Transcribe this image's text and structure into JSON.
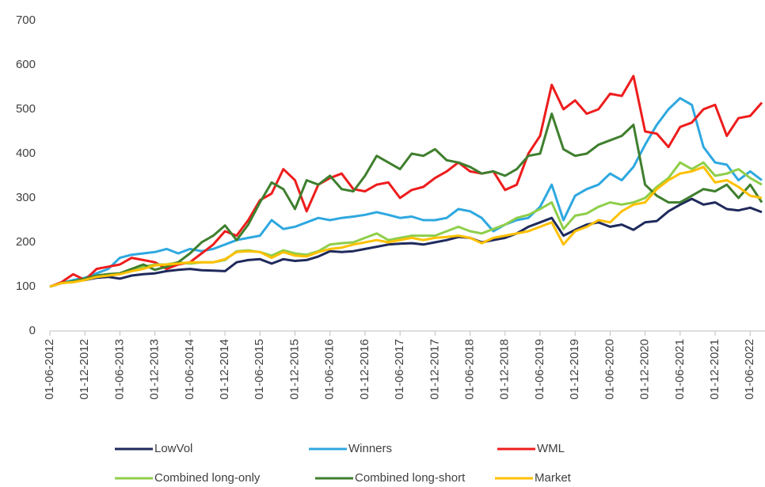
{
  "chart_data": {
    "type": "line",
    "categories": [
      "01-06-2012",
      null,
      null,
      "01-12-2012",
      null,
      null,
      "01-06-2013",
      null,
      null,
      "01-12-2013",
      null,
      null,
      "01-06-2014",
      null,
      null,
      "01-12-2014",
      null,
      null,
      "01-06-2015",
      null,
      null,
      "01-12-2015",
      null,
      null,
      "01-06-2016",
      null,
      null,
      "01-12-2016",
      null,
      null,
      "01-06-2017",
      null,
      null,
      "01-12-2017",
      null,
      null,
      "01-06-2018",
      null,
      null,
      "01-12-2018",
      null,
      null,
      "01-06-2019",
      null,
      null,
      "01-12-2019",
      null,
      null,
      "01-06-2020",
      null,
      null,
      "01-12-2020",
      null,
      null,
      "01-06-2021",
      null,
      null,
      "01-12-2021",
      null,
      null,
      "01-06-2022",
      null
    ],
    "series": [
      {
        "name": "LowVol",
        "color": "#1f2a5c",
        "values": [
          100,
          108,
          112,
          115,
          120,
          122,
          118,
          125,
          128,
          130,
          135,
          138,
          140,
          137,
          136,
          135,
          155,
          160,
          162,
          152,
          162,
          158,
          160,
          168,
          180,
          178,
          180,
          185,
          190,
          195,
          197,
          198,
          195,
          200,
          205,
          212,
          210,
          200,
          205,
          210,
          220,
          235,
          245,
          255,
          215,
          228,
          240,
          245,
          235,
          240,
          228,
          245,
          248,
          270,
          285,
          298,
          285,
          290,
          275,
          272,
          278,
          268
        ]
      },
      {
        "name": "Winners",
        "color": "#2ea8e0",
        "values": [
          100,
          108,
          115,
          120,
          130,
          140,
          165,
          172,
          175,
          178,
          185,
          175,
          185,
          180,
          185,
          195,
          205,
          210,
          215,
          250,
          230,
          235,
          245,
          255,
          250,
          255,
          258,
          262,
          268,
          262,
          255,
          258,
          250,
          250,
          255,
          275,
          270,
          255,
          225,
          240,
          250,
          255,
          280,
          330,
          250,
          305,
          320,
          330,
          355,
          340,
          370,
          420,
          465,
          500,
          525,
          510,
          415,
          380,
          375,
          340,
          360,
          340
        ]
      },
      {
        "name": "WML",
        "color": "#ee1c1c",
        "values": [
          100,
          110,
          128,
          115,
          140,
          145,
          150,
          165,
          160,
          155,
          140,
          150,
          155,
          175,
          195,
          225,
          215,
          250,
          295,
          310,
          365,
          340,
          270,
          330,
          345,
          355,
          320,
          315,
          330,
          335,
          300,
          318,
          325,
          345,
          360,
          380,
          360,
          355,
          360,
          318,
          330,
          400,
          440,
          555,
          500,
          520,
          490,
          500,
          535,
          530,
          575,
          450,
          445,
          415,
          460,
          470,
          500,
          510,
          440,
          480,
          485,
          515
        ]
      },
      {
        "name": "Combined long-only",
        "color": "#8fce4a",
        "values": [
          100,
          108,
          112,
          118,
          125,
          128,
          130,
          140,
          145,
          150,
          150,
          155,
          152,
          155,
          155,
          160,
          180,
          182,
          178,
          170,
          182,
          175,
          172,
          180,
          195,
          198,
          200,
          210,
          220,
          205,
          210,
          215,
          215,
          215,
          225,
          235,
          225,
          220,
          230,
          240,
          255,
          262,
          275,
          290,
          230,
          260,
          265,
          280,
          290,
          285,
          290,
          300,
          325,
          345,
          380,
          365,
          380,
          350,
          355,
          365,
          345,
          330
        ]
      },
      {
        "name": "Combined long-short",
        "color": "#3f7f2e",
        "values": [
          100,
          108,
          112,
          118,
          125,
          128,
          130,
          140,
          150,
          138,
          145,
          155,
          175,
          200,
          215,
          238,
          205,
          240,
          290,
          335,
          320,
          275,
          340,
          330,
          350,
          320,
          315,
          350,
          395,
          380,
          365,
          400,
          395,
          410,
          385,
          380,
          370,
          355,
          360,
          350,
          365,
          395,
          400,
          490,
          410,
          395,
          400,
          420,
          430,
          440,
          465,
          330,
          305,
          290,
          290,
          305,
          320,
          315,
          330,
          300,
          330,
          290
        ]
      },
      {
        "name": "Market",
        "color": "#ffc000",
        "values": [
          100,
          108,
          110,
          115,
          122,
          125,
          128,
          135,
          140,
          148,
          150,
          152,
          155,
          155,
          155,
          162,
          178,
          180,
          178,
          165,
          178,
          170,
          168,
          178,
          185,
          188,
          195,
          200,
          205,
          200,
          205,
          210,
          205,
          210,
          212,
          215,
          210,
          198,
          210,
          215,
          220,
          225,
          235,
          245,
          195,
          225,
          235,
          250,
          245,
          270,
          285,
          290,
          320,
          340,
          355,
          360,
          370,
          335,
          340,
          325,
          305,
          300
        ]
      }
    ],
    "ylim": [
      0,
      700
    ],
    "yticks": [
      0,
      100,
      200,
      300,
      400,
      500,
      600,
      700
    ],
    "grid": false,
    "legend": "bottom"
  }
}
